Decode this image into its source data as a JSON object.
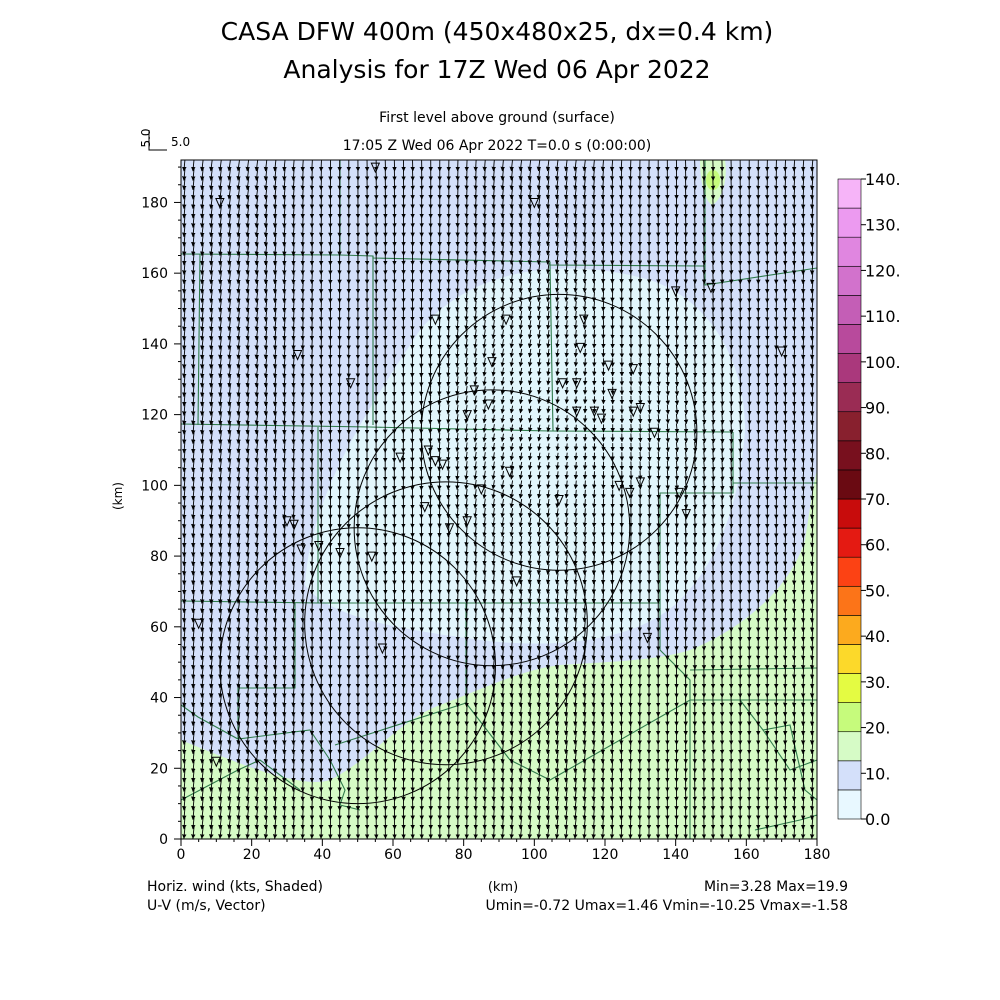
{
  "header": {
    "title_line1": "CASA DFW 400m (450x480x25, dx=0.4 km)",
    "title_line2": "Analysis for 17Z Wed 06 Apr 2022",
    "subtitle_level": "First level above ground (surface)",
    "subtitle_time": "17:05 Z Wed 06 Apr 2022    T=0.0 s (0:00:00)",
    "vector_ref_side": "5.0",
    "vector_ref_label": "5.0"
  },
  "axes": {
    "x_label": "(km)",
    "y_label": "(km)",
    "x_ticks": [
      "0",
      "20",
      "40",
      "60",
      "80",
      "100",
      "120",
      "140",
      "160",
      "180"
    ],
    "y_ticks": [
      "0",
      "20",
      "40",
      "60",
      "80",
      "100",
      "120",
      "140",
      "160",
      "180"
    ],
    "x_range": [
      0,
      180
    ],
    "y_range": [
      0,
      192
    ]
  },
  "colorbar": {
    "labels": [
      "0.0",
      "10.",
      "20.",
      "30.",
      "40.",
      "50.",
      "60.",
      "70.",
      "80.",
      "90.",
      "100.",
      "110.",
      "120.",
      "130.",
      "140."
    ],
    "colors": [
      "#e8f8ff",
      "#d4e0fa",
      "#d6fbc6",
      "#c6fb7c",
      "#e4fb42",
      "#fcd92a",
      "#fcaa1e",
      "#fc7418",
      "#fc4214",
      "#e41a12",
      "#c80c0c",
      "#6a0a12",
      "#78101e",
      "#88202e",
      "#9a2c54",
      "#aa387c",
      "#b84a9c",
      "#c45eb6",
      "#d272cc",
      "#e086e0",
      "#ec9af0",
      "#f6b4f8"
    ],
    "fill_levels": {
      "cyan_core": "#e2f6fc",
      "blue": "#d4e0fa",
      "green": "#d6fbc6",
      "yellowgreen": "#c6fb7c"
    }
  },
  "footer": {
    "left1": "Horiz. wind (kts, Shaded)",
    "left2": "U-V (m/s, Vector)",
    "center": "(km)",
    "right1": "Min=3.28 Max=19.9",
    "right2": "Umin=-0.72 Umax=1.46 Vmin=-10.25 Vmax=-1.58"
  },
  "radars": [
    {
      "x": 50,
      "y": 49,
      "r": 39
    },
    {
      "x": 88,
      "y": 88,
      "r": 39
    },
    {
      "x": 75,
      "y": 61,
      "r": 40
    },
    {
      "x": 107,
      "y": 115,
      "r": 39
    }
  ],
  "stations": [
    [
      11,
      180
    ],
    [
      55,
      190
    ],
    [
      100,
      180
    ],
    [
      33,
      137
    ],
    [
      140,
      155
    ],
    [
      150,
      156
    ],
    [
      170,
      138
    ],
    [
      72,
      147
    ],
    [
      92,
      147
    ],
    [
      114,
      147
    ],
    [
      48,
      129
    ],
    [
      83,
      127
    ],
    [
      88,
      135
    ],
    [
      113,
      139
    ],
    [
      121,
      134
    ],
    [
      128,
      133
    ],
    [
      108,
      129
    ],
    [
      112,
      129
    ],
    [
      122,
      126
    ],
    [
      87,
      123
    ],
    [
      81,
      120
    ],
    [
      112,
      121
    ],
    [
      117,
      121
    ],
    [
      119,
      119
    ],
    [
      128,
      121
    ],
    [
      130,
      122
    ],
    [
      134,
      115
    ],
    [
      70,
      110
    ],
    [
      72,
      107
    ],
    [
      74,
      106
    ],
    [
      62,
      108
    ],
    [
      93,
      104
    ],
    [
      107,
      96
    ],
    [
      124,
      100
    ],
    [
      127,
      98
    ],
    [
      130,
      101
    ],
    [
      141,
      98
    ],
    [
      143,
      92
    ],
    [
      30,
      90
    ],
    [
      32,
      89
    ],
    [
      69,
      94
    ],
    [
      76,
      88
    ],
    [
      81,
      90
    ],
    [
      85,
      99
    ],
    [
      34,
      82
    ],
    [
      39,
      83
    ],
    [
      45,
      81
    ],
    [
      54,
      80
    ],
    [
      95,
      73
    ],
    [
      5,
      61
    ],
    [
      57,
      54
    ],
    [
      132,
      57
    ],
    [
      10,
      22
    ]
  ]
}
